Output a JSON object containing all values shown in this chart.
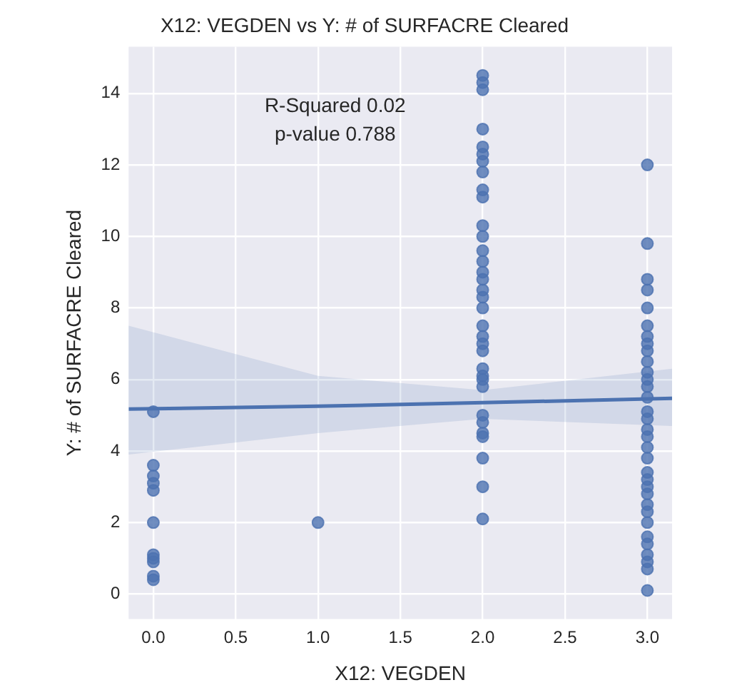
{
  "chart_data": {
    "type": "scatter",
    "title": "X12: VEGDEN vs Y: # of SURFACRE Cleared",
    "xlabel": "X12: VEGDEN",
    "ylabel": "Y: # of SURFACRE Cleared",
    "annotations": [
      "R-Squared 0.02",
      "p-value 0.788"
    ],
    "xlim": [
      -0.15,
      3.15
    ],
    "ylim": [
      -0.7,
      15.3
    ],
    "xticks": [
      {
        "value": 0,
        "label": "0.0"
      },
      {
        "value": 0.5,
        "label": "0.5"
      },
      {
        "value": 1,
        "label": "1.0"
      },
      {
        "value": 1.5,
        "label": "1.5"
      },
      {
        "value": 2,
        "label": "2.0"
      },
      {
        "value": 2.5,
        "label": "2.5"
      },
      {
        "value": 3,
        "label": "3.0"
      }
    ],
    "yticks": [
      0,
      2,
      4,
      6,
      8,
      10,
      12,
      14
    ],
    "grid": true,
    "legend": false,
    "marker": "circle",
    "series": [
      {
        "color": "#4c72b0",
        "x": [
          0,
          0,
          0,
          0,
          0,
          0,
          0,
          0,
          0,
          0,
          0,
          1,
          2,
          2,
          2,
          2,
          2,
          2,
          2,
          2,
          2,
          2,
          2,
          2,
          2,
          2,
          2,
          2,
          2,
          2,
          2,
          2,
          2,
          2,
          2,
          2,
          2,
          2,
          2,
          2,
          2,
          2,
          2,
          2,
          2,
          2,
          3,
          3,
          3,
          3,
          3,
          3,
          3,
          3,
          3,
          3,
          3,
          3,
          3,
          3,
          3,
          3,
          3,
          3,
          3,
          3,
          3,
          3,
          3,
          3,
          3,
          3,
          3,
          3,
          3,
          3,
          3,
          3,
          3
        ],
        "values": [
          5.1,
          3.6,
          3.3,
          3.1,
          2.9,
          2.0,
          1.1,
          1.0,
          0.9,
          0.5,
          0.4,
          2.0,
          14.5,
          14.3,
          14.1,
          13.0,
          12.5,
          12.3,
          12.1,
          11.8,
          11.3,
          11.1,
          10.3,
          10.0,
          9.6,
          9.3,
          9.0,
          8.8,
          8.5,
          8.3,
          8.0,
          7.5,
          7.2,
          7.0,
          6.8,
          6.3,
          6.1,
          6.0,
          5.8,
          5.0,
          4.8,
          4.5,
          4.4,
          3.8,
          3.0,
          2.1,
          12.0,
          9.8,
          8.8,
          8.5,
          8.0,
          7.5,
          7.2,
          7.0,
          6.8,
          6.5,
          6.2,
          6.0,
          5.8,
          5.5,
          5.1,
          4.9,
          4.6,
          4.4,
          4.1,
          3.8,
          3.4,
          3.2,
          3.0,
          2.8,
          2.5,
          2.3,
          2.0,
          1.6,
          1.4,
          1.1,
          0.9,
          0.7,
          0.1
        ]
      },
      {
        "type": "line",
        "color": "#4c72b0",
        "marker": "none",
        "x": [
          -0.15,
          1,
          2,
          3.15
        ],
        "values": [
          5.17,
          5.25,
          5.35,
          5.47
        ],
        "lower": [
          3.9,
          4.5,
          4.9,
          4.7
        ],
        "upper": [
          7.5,
          6.1,
          5.7,
          6.3
        ]
      }
    ]
  }
}
